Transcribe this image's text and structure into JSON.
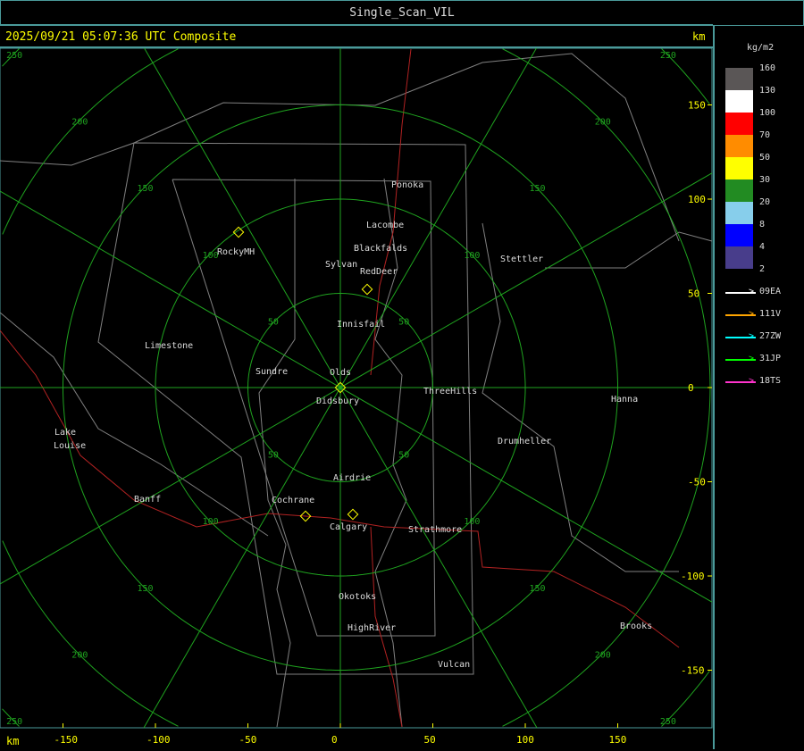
{
  "window": {
    "title": "Single_Scan_VIL"
  },
  "header": {
    "timestamp": "2025/09/21 05:07:36 UTC Composite",
    "unit_top": "km",
    "unit_bottom": "km"
  },
  "legend": {
    "unit": "kg/m2",
    "bins": [
      {
        "label": "160",
        "color": "#5a5656"
      },
      {
        "label": "130",
        "color": "#ffffff"
      },
      {
        "label": "100",
        "color": "#ff0000"
      },
      {
        "label": "70",
        "color": "#ff8c00"
      },
      {
        "label": "50",
        "color": "#ffff00"
      },
      {
        "label": "30",
        "color": "#228b22"
      },
      {
        "label": "20",
        "color": "#87ceeb"
      },
      {
        "label": "8",
        "color": "#0000ff"
      },
      {
        "label": "4",
        "color": "#483d8b"
      }
    ],
    "bottom_label": "2",
    "radars": [
      {
        "name": "09EA",
        "color": "#ffffff"
      },
      {
        "name": "111V",
        "color": "#ffa500"
      },
      {
        "name": "27ZW",
        "color": "#00ffff"
      },
      {
        "name": "31JP",
        "color": "#00ff00"
      },
      {
        "name": "18TS",
        "color": "#ff33cc"
      }
    ]
  },
  "axes": {
    "x_ticks": [
      "-150",
      "-100",
      "-50",
      "0",
      "50",
      "100",
      "150"
    ],
    "y_ticks": [
      "150",
      "100",
      "50",
      "0",
      "-50",
      "-100",
      "-150"
    ],
    "ring_labels": [
      "50",
      "100",
      "150",
      "200",
      "250"
    ]
  },
  "towns": [
    "Ponoka",
    "Lacombe",
    "Blackfalds",
    "Sylvan",
    "RedDeer",
    "RockyMH",
    "Stettler",
    "Innisfail",
    "Limestone",
    "Sundre",
    "Olds",
    "Didsbury",
    "ThreeHills",
    "Hanna",
    "Drumheller",
    "Lake",
    "Louise",
    "Airdrie",
    "Banff",
    "Cochrane",
    "Calgary",
    "Strathmore",
    "Okotoks",
    "HighRiver",
    "Brooks",
    "Vulcan"
  ],
  "colors": {
    "rings": "#1fa31f",
    "border": "#4a9a9a",
    "labels": "#ddd",
    "timestamp": "#ffff00",
    "boundaries": "#808080",
    "rivers": "#b22222"
  }
}
